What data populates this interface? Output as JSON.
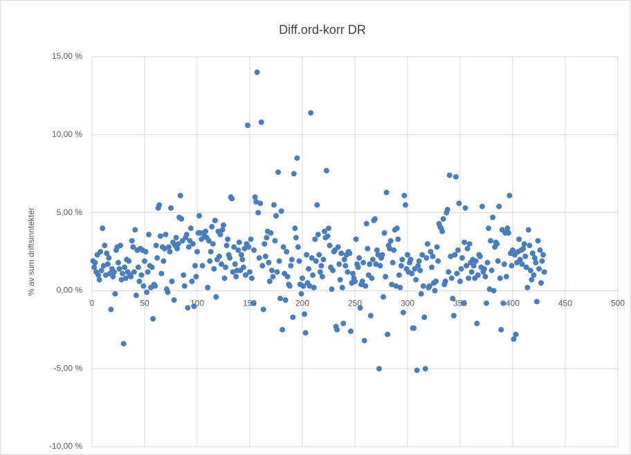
{
  "chart_data": {
    "type": "scatter",
    "title": "Diff.ord-korr DR",
    "y_label": "% av sum driftsinntekter",
    "color": "#4a7ebb",
    "grid": true,
    "xlim": [
      0,
      500
    ],
    "xticks": [
      0,
      50,
      100,
      150,
      200,
      250,
      300,
      350,
      400,
      450,
      500
    ],
    "ylim": [
      -10,
      15
    ],
    "yticks": [
      {
        "value": 15,
        "label": "15,00 %"
      },
      {
        "value": 10,
        "label": "10,00 %"
      },
      {
        "value": 5,
        "label": "5,00 %"
      },
      {
        "value": 0,
        "label": "0,00 %"
      },
      {
        "value": -5,
        "label": "-5,00 %"
      },
      {
        "value": -10,
        "label": "-10,00 %"
      }
    ],
    "x": [
      1,
      2,
      3,
      4,
      5,
      6,
      7,
      8,
      9,
      10,
      11,
      12,
      13,
      14,
      15,
      16,
      17,
      18,
      19,
      20,
      21,
      22,
      23,
      24,
      25,
      26,
      27,
      28,
      29,
      30,
      31,
      32,
      33,
      34,
      35,
      36,
      37,
      38,
      39,
      40,
      41,
      42,
      43,
      44,
      45,
      46,
      47,
      48,
      49,
      50,
      51,
      52,
      53,
      54,
      55,
      56,
      57,
      58,
      59,
      60,
      61,
      62,
      63,
      64,
      65,
      66,
      67,
      68,
      69,
      70,
      71,
      72,
      73,
      74,
      75,
      76,
      77,
      78,
      79,
      80,
      81,
      82,
      83,
      84,
      85,
      86,
      87,
      88,
      89,
      90,
      91,
      92,
      93,
      94,
      95,
      96,
      97,
      98,
      99,
      100,
      101,
      102,
      103,
      104,
      105,
      106,
      107,
      108,
      109,
      110,
      111,
      112,
      113,
      114,
      115,
      116,
      117,
      118,
      119,
      120,
      121,
      122,
      123,
      124,
      125,
      126,
      127,
      128,
      129,
      130,
      131,
      132,
      133,
      134,
      135,
      136,
      137,
      138,
      139,
      140,
      141,
      142,
      143,
      144,
      145,
      146,
      147,
      148,
      149,
      150,
      151,
      152,
      153,
      154,
      155,
      156,
      157,
      158,
      159,
      160,
      161,
      162,
      163,
      164,
      165,
      166,
      167,
      168,
      169,
      170,
      171,
      172,
      173,
      174,
      175,
      176,
      177,
      178,
      179,
      180,
      181,
      182,
      183,
      184,
      185,
      186,
      187,
      188,
      189,
      190,
      191,
      192,
      193,
      194,
      195,
      196,
      197,
      198,
      199,
      200,
      201,
      202,
      203,
      204,
      205,
      206,
      207,
      208,
      209,
      210,
      211,
      212,
      213,
      214,
      215,
      216,
      217,
      218,
      219,
      220,
      221,
      222,
      223,
      224,
      225,
      226,
      227,
      228,
      229,
      230,
      231,
      232,
      233,
      234,
      235,
      236,
      237,
      238,
      239,
      240,
      241,
      242,
      243,
      244,
      245,
      246,
      247,
      248,
      249,
      250,
      251,
      252,
      253,
      254,
      255,
      256,
      257,
      258,
      259,
      260,
      261,
      262,
      263,
      264,
      265,
      266,
      267,
      268,
      269,
      270,
      271,
      272,
      273,
      274,
      275,
      276,
      277,
      278,
      279,
      280,
      281,
      282,
      283,
      284,
      285,
      286,
      287,
      288,
      289,
      290,
      291,
      292,
      293,
      294,
      295,
      296,
      297,
      298,
      299,
      300,
      301,
      302,
      303,
      304,
      305,
      306,
      307,
      308,
      309,
      310,
      311,
      312,
      313,
      314,
      315,
      316,
      317,
      318,
      319,
      320,
      321,
      322,
      323,
      324,
      325,
      326,
      327,
      328,
      329,
      330,
      331,
      332,
      333,
      334,
      335,
      336,
      337,
      338,
      339,
      340,
      341,
      342,
      343,
      344,
      345,
      346,
      347,
      348,
      349,
      350,
      351,
      352,
      353,
      354,
      355,
      356,
      357,
      358,
      359,
      360,
      361,
      362,
      363,
      364,
      365,
      366,
      367,
      368,
      369,
      370,
      371,
      372,
      373,
      374,
      375,
      376,
      377,
      378,
      379,
      380,
      381,
      382,
      383,
      384,
      385,
      386,
      387,
      388,
      389,
      390,
      391,
      392,
      393,
      394,
      395,
      396,
      397,
      398,
      399,
      400,
      401,
      402,
      403,
      404,
      405,
      406,
      407,
      408,
      409,
      410,
      411,
      412,
      413,
      414,
      415,
      416,
      417,
      418,
      419,
      420,
      421,
      422,
      423,
      424,
      425,
      426,
      427,
      428,
      429,
      430
    ],
    "values": [
      1.9,
      1.5,
      1.8,
      1.2,
      2.3,
      1.0,
      0.7,
      2.5,
      1.3,
      4.0,
      1.6,
      2.9,
      1.0,
      2.4,
      1.7,
      2.1,
      1.1,
      -1.2,
      1.4,
      0.9,
      1.2,
      -0.2,
      2.6,
      2.8,
      1.8,
      1.4,
      2.9,
      0.7,
      1.1,
      -3.4,
      1.5,
      0.8,
      2.0,
      1.2,
      1.9,
      1.0,
      0.9,
      3.2,
      2.8,
      1.2,
      3.9,
      -0.3,
      2.6,
      1.5,
      0.6,
      2.7,
      1.0,
      2.6,
      0.3,
      1.9,
      2.5,
      -0.1,
      1.2,
      3.6,
      1.6,
      0.2,
      1.5,
      -1.8,
      0.4,
      0.3,
      2.9,
      2.1,
      5.3,
      5.5,
      3.5,
      1.1,
      2.8,
      1.9,
      2.7,
      3.6,
      0.1,
      -0.1,
      2.8,
      2.5,
      5.3,
      0.6,
      3.1,
      -0.6,
      2.9,
      3.4,
      2.7,
      3.0,
      4.7,
      6.1,
      4.6,
      3.2,
      1.0,
      0.3,
      3.4,
      3.6,
      -1.1,
      2.8,
      3.2,
      4.0,
      0.6,
      3.0,
      -1.0,
      1.6,
      0.9,
      2.5,
      3.7,
      4.8,
      3.7,
      3.3,
      1.6,
      3.7,
      3.5,
      3.8,
      3.4,
      0.2,
      3.2,
      1.9,
      2.5,
      4.1,
      3.0,
      1.4,
      4.5,
      -0.4,
      2.0,
      3.8,
      2.2,
      3.6,
      1.7,
      3.9,
      4.2,
      0.8,
      1.5,
      2.9,
      3.3,
      2.3,
      2.1,
      6.0,
      5.9,
      1.2,
      2.8,
      1.7,
      0.9,
      1.3,
      2.6,
      3.1,
      1.3,
      2.3,
      2.0,
      1.5,
      2.7,
      1.0,
      3.0,
      10.6,
      2.8,
      1.2,
      3.3,
      0.8,
      -0.8,
      2.6,
      6.0,
      5.7,
      14.0,
      5.0,
      2.1,
      5.6,
      10.8,
      1.6,
      -1.2,
      3.0,
      2.2,
      3.4,
      3.8,
      1.8,
      0.6,
      3.7,
      1.3,
      0.9,
      5.5,
      3.2,
      4.8,
      1.2,
      7.6,
      1.9,
      -0.5,
      5.1,
      -2.5,
      2.8,
      1.1,
      -0.6,
      2.5,
      0.9,
      0.4,
      0.3,
      1.6,
      2.0,
      -1.7,
      7.5,
      4.0,
      3.4,
      8.5,
      2.8,
      1.9,
      0.4,
      -0.2,
      0.8,
      0.3,
      -1.5,
      -2.7,
      2.3,
      0.5,
      1.4,
      0.3,
      11.4,
      2.1,
      1.0,
      0.2,
      3.3,
      1.9,
      5.5,
      3.6,
      2.3,
      1.2,
      1.6,
      0.9,
      2.0,
      3.8,
      3.4,
      7.7,
      3.5,
      4.0,
      2.9,
      1.5,
      0.1,
      1.3,
      2.5,
      2.6,
      -2.3,
      -2.5,
      2.8,
      1.7,
      0.7,
      2.4,
      0.2,
      -2.1,
      2.0,
      1.6,
      2.3,
      1.2,
      2.5,
      2.4,
      -2.6,
      0.5,
      1.1,
      0.8,
      0.6,
      3.3,
      1.7,
      1.5,
      2.1,
      -1.1,
      0.4,
      0.6,
      1.8,
      -3.2,
      0.3,
      4.3,
      2.7,
      1.0,
      1.7,
      -1.6,
      0.8,
      2.0,
      4.5,
      4.6,
      1.7,
      2.6,
      2.3,
      -5.0,
      1.6,
      2.1,
      2.3,
      -0.4,
      3.7,
      0.9,
      6.3,
      -2.8,
      2.9,
      2.7,
      3.2,
      0.4,
      1.8,
      2.6,
      3.9,
      0.3,
      4.0,
      3.3,
      1.0,
      0.2,
      1.6,
      2.0,
      -1.4,
      6.1,
      5.5,
      1.4,
      2.3,
      1.2,
      1.8,
      2.0,
      1.1,
      -2.4,
      -2.4,
      1.4,
      0.7,
      -5.1,
      1.6,
      1.9,
      1.3,
      -0.2,
      2.3,
      0.3,
      -1.7,
      -5.0,
      2.1,
      3.0,
      0.2,
      0.3,
      2.5,
      1.5,
      2.2,
      0.5,
      0.0,
      0.6,
      2.8,
      1.9,
      4.3,
      4.1,
      4.0,
      3.8,
      4.6,
      0.4,
      0.6,
      5.0,
      5.2,
      1.2,
      7.4,
      2.2,
      0.8,
      -0.5,
      -1.6,
      2.3,
      7.3,
      1.1,
      2.6,
      5.6,
      0.6,
      1.4,
      2.1,
      -0.8,
      3.1,
      5.3,
      1.6,
      2.7,
      0.8,
      3.0,
      1.8,
      1.2,
      2.0,
      1.6,
      0.8,
      1.9,
      -2.1,
      1.0,
      2.3,
      2.2,
      1.5,
      5.4,
      1.2,
      1.4,
      0.9,
      -0.8,
      1.8,
      4.0,
      0.1,
      3.2,
      1.3,
      4.7,
      0.0,
      2.8,
      3.1,
      3.0,
      1.9,
      5.4,
      0.8,
      -2.5,
      3.9,
      -0.8,
      1.7,
      3.7,
      0.9,
      4.0,
      3.7,
      6.1,
      2.4,
      1.6,
      2.6,
      -3.1,
      2.3,
      -2.8,
      1.8,
      2.5,
      3.3,
      2.0,
      2.6,
      1.7,
      2.7,
      3.0,
      2.2,
      1.5,
      0.2,
      3.9,
      2.9,
      1.3,
      0.7,
      2.4,
      1.0,
      2.1,
      1.8,
      -0.7,
      3.2,
      1.4,
      2.6,
      0.5,
      1.9,
      2.3,
      1.2
    ]
  }
}
